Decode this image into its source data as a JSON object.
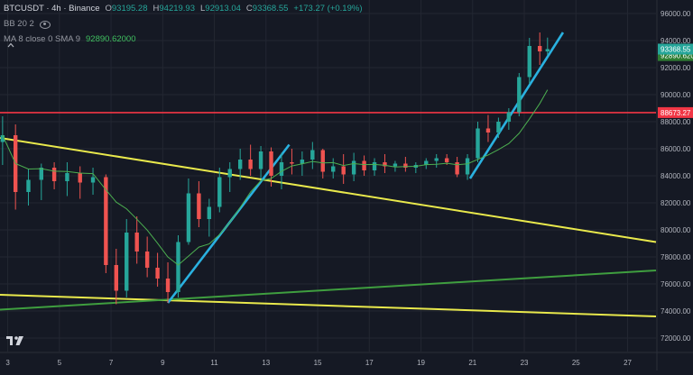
{
  "legend": {
    "symbol": "BTCUSDT · 4h · Binance",
    "ohlc": [
      {
        "label": "O",
        "value": "93195.28"
      },
      {
        "label": "H",
        "value": "94219.93"
      },
      {
        "label": "L",
        "value": "92913.04"
      },
      {
        "label": "C",
        "value": "93368.55"
      }
    ],
    "change": "+173.27 (+0.19%)",
    "bb_label": "BB 20 2",
    "ma_label": "MA 8 close 0 SMA 9",
    "ma_value": "92890.62000"
  },
  "icons": {
    "visibility": "eye-icon",
    "collapse": "chevron-up-icon",
    "logo": "tradingview-logo-icon"
  },
  "colors": {
    "background": "#151924",
    "grid": "#232732",
    "candle_up": "#26a69a",
    "candle_down": "#ef5350",
    "ma_line": "#4caf50",
    "horizontal_level": "#f23645",
    "trendline_yellow": "#e9e94c",
    "trendline_blue": "#2ab1e0",
    "trendline_green": "#3f9e3f",
    "price_tag": "#26a69a"
  },
  "chart_data": {
    "type": "candlestick",
    "symbol": "BTCUSDT",
    "interval": "4h",
    "exchange": "Binance",
    "x_tick_labels": [
      "3",
      "5",
      "7",
      "9",
      "11",
      "13",
      "15",
      "17",
      "19",
      "21",
      "23",
      "25",
      "27"
    ],
    "y_tick_labels": [
      "72000.00",
      "74000.00",
      "76000.00",
      "78000.00",
      "80000.00",
      "82000.00",
      "84000.00",
      "86000.00",
      "88000.00",
      "90000.00",
      "92000.00",
      "94000.00",
      "96000.00"
    ],
    "ylim": [
      71000,
      97000
    ],
    "xlim": [
      2.7,
      28.1
    ],
    "grid": true,
    "price_labels": {
      "last": "93368.55",
      "ma": "92890.62000",
      "level": "88673.27"
    },
    "horizontal_level": 88673.27,
    "last_price": 93368.55,
    "ma_value": 92890.62,
    "ohlc_daily": [
      {
        "d": 2.8,
        "o": 86500,
        "h": 88400,
        "l": 84800,
        "c": 87000
      },
      {
        "d": 3.3,
        "o": 87000,
        "h": 87800,
        "l": 81500,
        "c": 82800
      },
      {
        "d": 3.8,
        "o": 82800,
        "h": 84500,
        "l": 81800,
        "c": 83700
      },
      {
        "d": 4.3,
        "o": 83700,
        "h": 84900,
        "l": 82200,
        "c": 84600
      },
      {
        "d": 4.8,
        "o": 84600,
        "h": 85000,
        "l": 83000,
        "c": 83600
      },
      {
        "d": 5.3,
        "o": 83600,
        "h": 85000,
        "l": 82500,
        "c": 84200
      },
      {
        "d": 5.8,
        "o": 84200,
        "h": 84700,
        "l": 82300,
        "c": 83500
      },
      {
        "d": 6.3,
        "o": 83500,
        "h": 84600,
        "l": 82600,
        "c": 83900
      },
      {
        "d": 6.8,
        "o": 83900,
        "h": 84100,
        "l": 76800,
        "c": 77400
      },
      {
        "d": 7.2,
        "o": 77400,
        "h": 78600,
        "l": 74500,
        "c": 75500
      },
      {
        "d": 7.6,
        "o": 75500,
        "h": 80800,
        "l": 75000,
        "c": 79800
      },
      {
        "d": 8.0,
        "o": 79800,
        "h": 81000,
        "l": 77500,
        "c": 78400
      },
      {
        "d": 8.4,
        "o": 78400,
        "h": 79500,
        "l": 76500,
        "c": 77200
      },
      {
        "d": 8.8,
        "o": 77200,
        "h": 78300,
        "l": 75800,
        "c": 76400
      },
      {
        "d": 9.2,
        "o": 76400,
        "h": 77600,
        "l": 74600,
        "c": 75400
      },
      {
        "d": 9.6,
        "o": 75400,
        "h": 79600,
        "l": 75000,
        "c": 79100
      },
      {
        "d": 10.0,
        "o": 79100,
        "h": 83800,
        "l": 78900,
        "c": 82700
      },
      {
        "d": 10.4,
        "o": 82700,
        "h": 83600,
        "l": 80200,
        "c": 80800
      },
      {
        "d": 10.8,
        "o": 80800,
        "h": 82300,
        "l": 79500,
        "c": 81700
      },
      {
        "d": 11.2,
        "o": 81700,
        "h": 84600,
        "l": 81300,
        "c": 83900
      },
      {
        "d": 11.6,
        "o": 83900,
        "h": 85000,
        "l": 82800,
        "c": 84500
      },
      {
        "d": 12.0,
        "o": 84500,
        "h": 86000,
        "l": 83700,
        "c": 85200
      },
      {
        "d": 12.4,
        "o": 85200,
        "h": 86300,
        "l": 84000,
        "c": 84500
      },
      {
        "d": 12.8,
        "o": 84500,
        "h": 86200,
        "l": 83800,
        "c": 85800
      },
      {
        "d": 13.2,
        "o": 85800,
        "h": 86100,
        "l": 83200,
        "c": 84000
      },
      {
        "d": 13.6,
        "o": 84000,
        "h": 85700,
        "l": 83000,
        "c": 85000
      },
      {
        "d": 14.0,
        "o": 85000,
        "h": 86000,
        "l": 84100,
        "c": 84900
      },
      {
        "d": 14.4,
        "o": 84900,
        "h": 85800,
        "l": 84000,
        "c": 85200
      },
      {
        "d": 14.8,
        "o": 85200,
        "h": 86500,
        "l": 84500,
        "c": 85900
      },
      {
        "d": 15.2,
        "o": 85900,
        "h": 86000,
        "l": 83800,
        "c": 84300
      },
      {
        "d": 15.6,
        "o": 84300,
        "h": 85300,
        "l": 83800,
        "c": 84700
      },
      {
        "d": 16.0,
        "o": 84700,
        "h": 85600,
        "l": 83400,
        "c": 84100
      },
      {
        "d": 16.4,
        "o": 84100,
        "h": 85700,
        "l": 83600,
        "c": 85100
      },
      {
        "d": 16.8,
        "o": 85100,
        "h": 85500,
        "l": 84000,
        "c": 84400
      },
      {
        "d": 17.2,
        "o": 84400,
        "h": 85300,
        "l": 84000,
        "c": 85000
      },
      {
        "d": 17.6,
        "o": 85000,
        "h": 85600,
        "l": 84200,
        "c": 84700
      },
      {
        "d": 18.0,
        "o": 84700,
        "h": 85100,
        "l": 84300,
        "c": 84900
      },
      {
        "d": 18.4,
        "o": 84900,
        "h": 85400,
        "l": 84300,
        "c": 84600
      },
      {
        "d": 18.8,
        "o": 84600,
        "h": 85000,
        "l": 84200,
        "c": 84800
      },
      {
        "d": 19.2,
        "o": 84800,
        "h": 85300,
        "l": 84500,
        "c": 85100
      },
      {
        "d": 19.6,
        "o": 85100,
        "h": 85600,
        "l": 84600,
        "c": 85300
      },
      {
        "d": 20.0,
        "o": 85300,
        "h": 85600,
        "l": 84800,
        "c": 85000
      },
      {
        "d": 20.4,
        "o": 85000,
        "h": 85400,
        "l": 83900,
        "c": 84100
      },
      {
        "d": 20.8,
        "o": 84100,
        "h": 85600,
        "l": 83700,
        "c": 85300
      },
      {
        "d": 21.2,
        "o": 85300,
        "h": 88000,
        "l": 85000,
        "c": 87500
      },
      {
        "d": 21.6,
        "o": 87500,
        "h": 88500,
        "l": 86500,
        "c": 87200
      },
      {
        "d": 22.0,
        "o": 87200,
        "h": 88300,
        "l": 86800,
        "c": 88000
      },
      {
        "d": 22.4,
        "o": 88000,
        "h": 89000,
        "l": 87400,
        "c": 88700
      },
      {
        "d": 22.8,
        "o": 88700,
        "h": 91600,
        "l": 88400,
        "c": 91300
      },
      {
        "d": 23.2,
        "o": 91300,
        "h": 94200,
        "l": 90800,
        "c": 93600
      },
      {
        "d": 23.6,
        "o": 93600,
        "h": 94600,
        "l": 92200,
        "c": 93200
      },
      {
        "d": 23.9,
        "o": 93195.28,
        "h": 94219.93,
        "l": 92913.04,
        "c": 93368.55
      }
    ],
    "trendlines": [
      {
        "name": "upper yellow",
        "color": "yellow",
        "from": {
          "d": 2.7,
          "p": 86800
        },
        "to": {
          "d": 28.1,
          "p": 79100
        }
      },
      {
        "name": "lower yellow",
        "color": "yellow",
        "from": {
          "d": 2.7,
          "p": 75200
        },
        "to": {
          "d": 28.1,
          "p": 73600
        }
      },
      {
        "name": "green",
        "color": "green",
        "from": {
          "d": 2.7,
          "p": 74100
        },
        "to": {
          "d": 28.1,
          "p": 77000
        }
      },
      {
        "name": "blue 1",
        "color": "blue",
        "from": {
          "d": 9.2,
          "p": 74600
        },
        "to": {
          "d": 13.9,
          "p": 86300
        }
      },
      {
        "name": "blue 2",
        "color": "blue",
        "from": {
          "d": 20.9,
          "p": 83800
        },
        "to": {
          "d": 24.5,
          "p": 94600
        }
      }
    ]
  }
}
